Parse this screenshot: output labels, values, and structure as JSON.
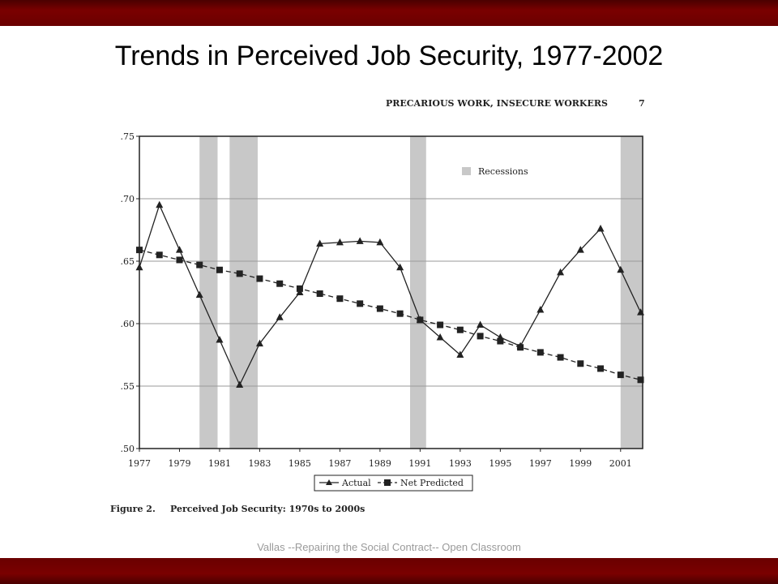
{
  "slide": {
    "title": "Trends in Perceived Job Security, 1977-2002",
    "footer": "Vallas --Repairing the Social Contract-- Open Classroom",
    "bar_color": "#7a0000"
  },
  "figure": {
    "running_head": "PRECARIOUS WORK, INSECURE WORKERS",
    "page_number": "7",
    "caption_label": "Figure 2.",
    "caption_text": "Perceived Job Security: 1970s to 2000s"
  },
  "chart_data": {
    "type": "line",
    "ylim": [
      0.5,
      0.75
    ],
    "xlim": [
      1977,
      2002.1
    ],
    "yticks": [
      {
        "value": 0.75,
        "label": ".75"
      },
      {
        "value": 0.7,
        "label": ".70"
      },
      {
        "value": 0.65,
        "label": ".65"
      },
      {
        "value": 0.6,
        "label": ".60"
      },
      {
        "value": 0.55,
        "label": ".55"
      },
      {
        "value": 0.5,
        "label": ".50"
      }
    ],
    "xticks": [
      {
        "value": 1977,
        "label": "1977"
      },
      {
        "value": 1979,
        "label": "1979"
      },
      {
        "value": 1981,
        "label": "1981"
      },
      {
        "value": 1983,
        "label": "1983"
      },
      {
        "value": 1985,
        "label": "1985"
      },
      {
        "value": 1987,
        "label": "1987"
      },
      {
        "value": 1989,
        "label": "1989"
      },
      {
        "value": 1991,
        "label": "1991"
      },
      {
        "value": 1993,
        "label": "1993"
      },
      {
        "value": 1995,
        "label": "1995"
      },
      {
        "value": 1997,
        "label": "1997"
      },
      {
        "value": 1999,
        "label": "1999"
      },
      {
        "value": 2001,
        "label": "2001"
      }
    ],
    "gridlines": [
      0.55,
      0.6,
      0.65,
      0.7
    ],
    "grid": true,
    "legend_placement": "bottom",
    "recessions": [
      {
        "start": 1980.0,
        "end": 1980.9
      },
      {
        "start": 1981.5,
        "end": 1982.9
      },
      {
        "start": 1990.5,
        "end": 1991.3
      },
      {
        "start": 2001.0,
        "end": 2002.1
      }
    ],
    "recession_legend": "Recessions",
    "recession_color": "#c8c8c8",
    "series": [
      {
        "name": "Actual",
        "marker": "triangle",
        "style": "solid",
        "x": [
          1977,
          1978,
          1979,
          1980,
          1981,
          1982,
          1983,
          1984,
          1985,
          1986,
          1987,
          1988,
          1989,
          1990,
          1991,
          1992,
          1993,
          1994,
          1995,
          1996,
          1997,
          1998,
          1999,
          2000,
          2001,
          2002
        ],
        "y": [
          0.645,
          0.695,
          0.659,
          0.623,
          0.587,
          0.551,
          0.584,
          0.605,
          0.625,
          0.664,
          0.665,
          0.666,
          0.665,
          0.645,
          0.603,
          0.589,
          0.575,
          0.599,
          0.589,
          0.582,
          0.611,
          0.641,
          0.659,
          0.676,
          0.643,
          0.609
        ]
      },
      {
        "name": "Net Predicted",
        "marker": "square",
        "style": "dashed",
        "x": [
          1977,
          1978,
          1979,
          1980,
          1981,
          1982,
          1983,
          1984,
          1985,
          1986,
          1987,
          1988,
          1989,
          1990,
          1991,
          1992,
          1993,
          1994,
          1995,
          1996,
          1997,
          1998,
          1999,
          2000,
          2001,
          2002
        ],
        "y": [
          0.659,
          0.655,
          0.651,
          0.647,
          0.643,
          0.64,
          0.636,
          0.632,
          0.628,
          0.624,
          0.62,
          0.616,
          0.612,
          0.608,
          0.603,
          0.599,
          0.595,
          0.59,
          0.586,
          0.581,
          0.577,
          0.573,
          0.568,
          0.564,
          0.559,
          0.555
        ]
      }
    ]
  }
}
